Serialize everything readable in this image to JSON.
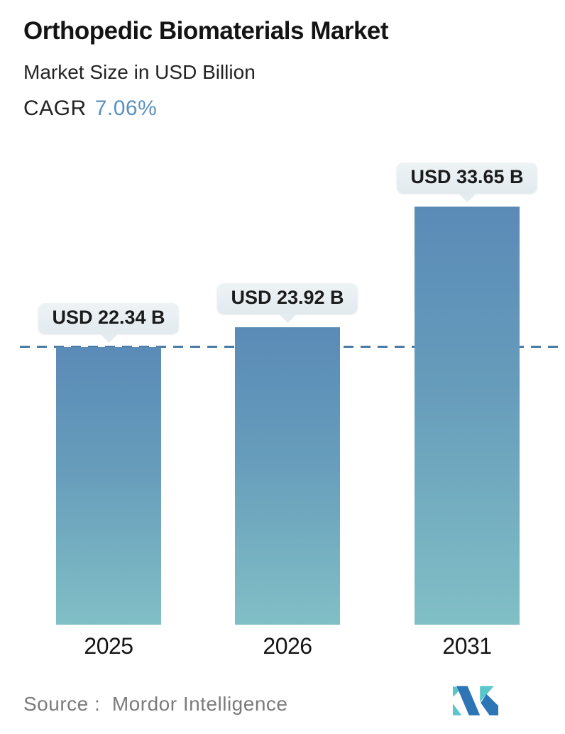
{
  "header": {
    "title": "Orthopedic Biomaterials Market",
    "subtitle": "Market Size in USD Billion",
    "cagr_label": "CAGR",
    "cagr_value": "7.06%"
  },
  "chart_data": {
    "type": "bar",
    "title": "Orthopedic Biomaterials Market",
    "subtitle": "Market Size in USD Billion",
    "unit": "USD Billion",
    "cagr_percent": 7.06,
    "categories": [
      "2025",
      "2026",
      "2031"
    ],
    "values": [
      22.34,
      23.92,
      33.65
    ],
    "bar_labels": [
      "USD 22.34 B",
      "USD 23.92 B",
      "USD 33.65 B"
    ],
    "reference_line": {
      "value": 22.34,
      "style": "dashed",
      "note": "level of 2025 bar"
    },
    "ylim": [
      0,
      35
    ],
    "grid": false,
    "legend": false,
    "axes_visible": false
  },
  "footer": {
    "source_label": "Source :",
    "source_value": "Mordor Intelligence",
    "logo": "mordor-intelligence-logo"
  },
  "colors": {
    "accent_blue": "#5a90bf",
    "bar_gradient_top": "#5a8bb7",
    "bar_gradient_bottom": "#81bfc6",
    "dashed_line": "#4a7ba6",
    "bubble_bg": "#e8eef1",
    "text_dark": "#141414",
    "source_gray": "#7b7b7b",
    "logo_blue": "#2e75b5",
    "logo_teal": "#59c7c9"
  }
}
